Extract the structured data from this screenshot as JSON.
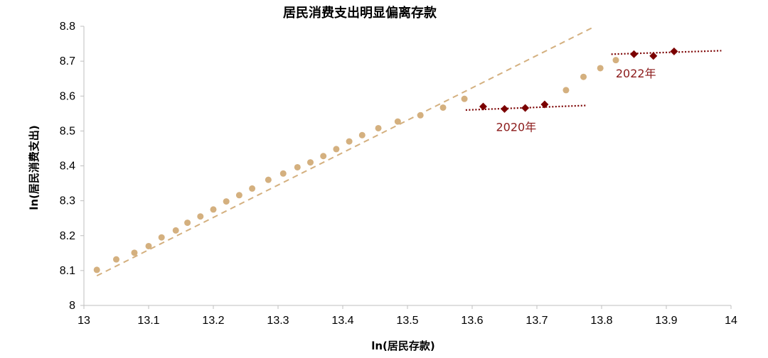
{
  "chart_data": {
    "type": "scatter",
    "title": "居民消费支出明显偏离存款",
    "xlabel": "ln(居民存款)",
    "ylabel": "ln(居民消费支出)",
    "xlim": [
      13,
      14
    ],
    "ylim": [
      8,
      8.8
    ],
    "x_ticks": [
      13,
      13.1,
      13.2,
      13.3,
      13.4,
      13.5,
      13.6,
      13.7,
      13.8,
      13.9,
      14
    ],
    "x_tick_labels": [
      "13",
      "13.1",
      "13.2",
      "13.3",
      "13.4",
      "13.5",
      "13.6",
      "13.7",
      "13.8",
      "13.9",
      "14"
    ],
    "y_ticks": [
      8,
      8.1,
      8.2,
      8.3,
      8.4,
      8.5,
      8.6,
      8.7,
      8.8
    ],
    "y_tick_labels": [
      "8",
      "8.1",
      "8.2",
      "8.3",
      "8.4",
      "8.5",
      "8.6",
      "8.7",
      "8.8"
    ],
    "grid": false,
    "legend": "none",
    "colors": {
      "tan": "#d4b07f",
      "dark_red": "#7b0000",
      "annot": "#8b1a1a",
      "axis": "#bfbfbf"
    },
    "series": [
      {
        "marker": "circle",
        "color": "#d4b07f",
        "points": [
          [
            13.02,
            8.102
          ],
          [
            13.05,
            8.132
          ],
          [
            13.078,
            8.151
          ],
          [
            13.1,
            8.17
          ],
          [
            13.12,
            8.195
          ],
          [
            13.142,
            8.215
          ],
          [
            13.16,
            8.237
          ],
          [
            13.18,
            8.255
          ],
          [
            13.2,
            8.275
          ],
          [
            13.22,
            8.298
          ],
          [
            13.24,
            8.316
          ],
          [
            13.26,
            8.335
          ],
          [
            13.285,
            8.36
          ],
          [
            13.308,
            8.378
          ],
          [
            13.33,
            8.396
          ],
          [
            13.35,
            8.41
          ],
          [
            13.37,
            8.428
          ],
          [
            13.39,
            8.448
          ],
          [
            13.41,
            8.47
          ],
          [
            13.43,
            8.488
          ],
          [
            13.455,
            8.508
          ],
          [
            13.485,
            8.527
          ],
          [
            13.52,
            8.545
          ],
          [
            13.555,
            8.567
          ],
          [
            13.588,
            8.592
          ],
          [
            13.745,
            8.617
          ],
          [
            13.772,
            8.655
          ],
          [
            13.798,
            8.68
          ],
          [
            13.822,
            8.703
          ]
        ]
      },
      {
        "marker": "diamond",
        "color": "#7b0000",
        "points": [
          [
            13.617,
            8.57
          ],
          [
            13.65,
            8.563
          ],
          [
            13.682,
            8.566
          ],
          [
            13.712,
            8.576
          ],
          [
            13.85,
            8.72
          ],
          [
            13.88,
            8.715
          ],
          [
            13.912,
            8.728
          ]
        ]
      }
    ],
    "trendlines": [
      {
        "style": "dashed",
        "color": "#d4b07f",
        "from": [
          13.02,
          8.085
        ],
        "to": [
          13.79,
          8.8
        ]
      },
      {
        "style": "dotted",
        "color": "#7b0000",
        "from": [
          13.59,
          8.56
        ],
        "to": [
          13.775,
          8.573
        ]
      },
      {
        "style": "dotted",
        "color": "#7b0000",
        "from": [
          13.815,
          8.72
        ],
        "to": [
          13.985,
          8.73
        ]
      }
    ],
    "annotations": [
      {
        "text": "2020年",
        "x": 13.668,
        "y": 8.5
      },
      {
        "text": "2022年",
        "x": 13.853,
        "y": 8.653
      }
    ]
  }
}
